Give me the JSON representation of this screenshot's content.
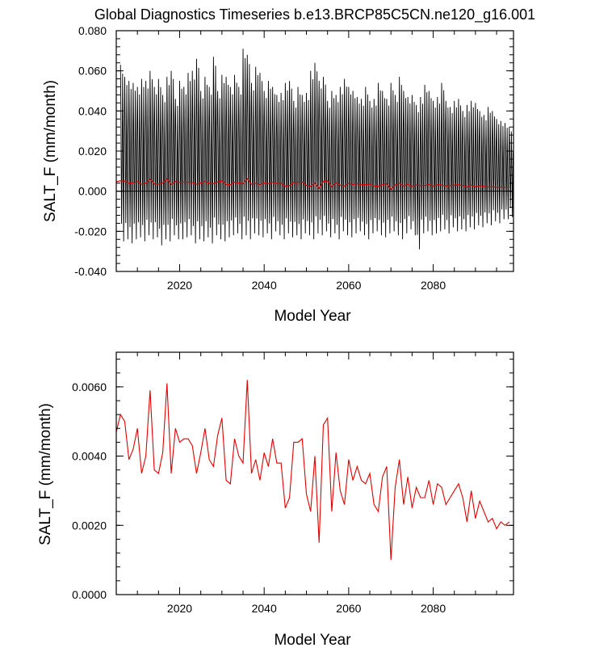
{
  "chart_data": [
    {
      "type": "line",
      "title": "Global Diagnostics Timeseries b.e13.BRCP85C5CN.ne120_g16.001",
      "xlabel": "Model Year",
      "ylabel": "SALT_F (mm/month)",
      "xlim": [
        2005,
        2099
      ],
      "ylim": [
        -0.04,
        0.08
      ],
      "x_ticks": [
        2020,
        2040,
        2060,
        2080
      ],
      "x_tick_labels": [
        "2020",
        "2040",
        "2060",
        "2080"
      ],
      "y_ticks": [
        -0.04,
        -0.02,
        0.0,
        0.02,
        0.04,
        0.06,
        0.08
      ],
      "y_tick_labels": [
        "-0.040",
        "-0.020",
        "0.000",
        "0.020",
        "0.040",
        "0.060",
        "0.080"
      ],
      "zero_line": true,
      "monthly_series": {
        "color": "#000000",
        "description_values": "monthly values oscillating seasonally",
        "start_year": 2006,
        "annual_peaks": [
          0.063,
          0.057,
          0.055,
          0.054,
          0.052,
          0.056,
          0.055,
          0.06,
          0.052,
          0.056,
          0.048,
          0.057,
          0.06,
          0.046,
          0.055,
          0.052,
          0.059,
          0.06,
          0.066,
          0.05,
          0.057,
          0.052,
          0.067,
          0.05,
          0.058,
          0.057,
          0.052,
          0.058,
          0.052,
          0.071,
          0.068,
          0.054,
          0.062,
          0.059,
          0.05,
          0.055,
          0.052,
          0.048,
          0.049,
          0.054,
          0.055,
          0.045,
          0.052,
          0.048,
          0.049,
          0.06,
          0.064,
          0.055,
          0.057,
          0.045,
          0.05,
          0.048,
          0.052,
          0.056,
          0.052,
          0.05,
          0.047,
          0.046,
          0.052,
          0.045,
          0.046,
          0.054,
          0.05,
          0.046,
          0.054,
          0.048,
          0.057,
          0.05,
          0.047,
          0.048,
          0.043,
          0.047,
          0.053,
          0.05,
          0.045,
          0.047,
          0.054,
          0.045,
          0.042,
          0.045,
          0.046,
          0.04,
          0.043,
          0.045,
          0.044,
          0.04,
          0.038,
          0.042,
          0.04,
          0.036,
          0.035,
          0.034,
          0.032
        ],
        "annual_troughs": [
          -0.025,
          -0.024,
          -0.026,
          -0.024,
          -0.023,
          -0.025,
          -0.022,
          -0.024,
          -0.023,
          -0.027,
          -0.024,
          -0.025,
          -0.022,
          -0.024,
          -0.024,
          -0.023,
          -0.022,
          -0.026,
          -0.024,
          -0.025,
          -0.023,
          -0.026,
          -0.022,
          -0.024,
          -0.025,
          -0.023,
          -0.022,
          -0.021,
          -0.024,
          -0.022,
          -0.024,
          -0.021,
          -0.022,
          -0.023,
          -0.021,
          -0.024,
          -0.02,
          -0.022,
          -0.024,
          -0.021,
          -0.023,
          -0.022,
          -0.024,
          -0.021,
          -0.022,
          -0.024,
          -0.021,
          -0.022,
          -0.02,
          -0.023,
          -0.021,
          -0.024,
          -0.02,
          -0.022,
          -0.023,
          -0.021,
          -0.02,
          -0.022,
          -0.024,
          -0.021,
          -0.02,
          -0.022,
          -0.023,
          -0.021,
          -0.02,
          -0.022,
          -0.024,
          -0.021,
          -0.019,
          -0.022,
          -0.029,
          -0.021,
          -0.02,
          -0.022,
          -0.021,
          -0.02,
          -0.019,
          -0.021,
          -0.018,
          -0.02,
          -0.019,
          -0.02,
          -0.018,
          -0.019,
          -0.017,
          -0.018,
          -0.016,
          -0.017,
          -0.015,
          -0.016,
          -0.014,
          -0.014,
          -0.013
        ]
      },
      "annual_series_color": "#e00000"
    },
    {
      "type": "line",
      "title": "",
      "xlabel": "Model Year",
      "ylabel": "SALT_F (mm/month)",
      "xlim": [
        2005,
        2099
      ],
      "ylim": [
        0.0,
        0.007
      ],
      "x_ticks": [
        2020,
        2040,
        2060,
        2080
      ],
      "x_tick_labels": [
        "2020",
        "2040",
        "2060",
        "2080"
      ],
      "y_ticks": [
        0.0,
        0.002,
        0.004,
        0.006
      ],
      "y_tick_labels": [
        "0.0000",
        "0.0020",
        "0.0040",
        "0.0060"
      ],
      "series": [
        {
          "color": "#e00000",
          "x_start": 2005,
          "x_step": 1,
          "values": [
            0.0047,
            0.0052,
            0.005,
            0.0039,
            0.0042,
            0.0048,
            0.0035,
            0.004,
            0.0059,
            0.0036,
            0.0035,
            0.0041,
            0.0061,
            0.0035,
            0.0048,
            0.0044,
            0.0045,
            0.0045,
            0.0043,
            0.0035,
            0.0041,
            0.0048,
            0.0039,
            0.0037,
            0.0046,
            0.0051,
            0.0033,
            0.0032,
            0.0045,
            0.004,
            0.0038,
            0.0062,
            0.0035,
            0.0039,
            0.0033,
            0.0041,
            0.0037,
            0.0045,
            0.0038,
            0.0038,
            0.0025,
            0.0028,
            0.0044,
            0.0044,
            0.0045,
            0.0029,
            0.0024,
            0.004,
            0.0015,
            0.0049,
            0.0051,
            0.0024,
            0.0041,
            0.003,
            0.0026,
            0.0039,
            0.0033,
            0.0037,
            0.0033,
            0.0032,
            0.0035,
            0.0026,
            0.0024,
            0.0034,
            0.0037,
            0.001,
            0.0031,
            0.0039,
            0.0026,
            0.0034,
            0.0025,
            0.0031,
            0.0028,
            0.0028,
            0.0033,
            0.0026,
            0.0032,
            0.0031,
            0.0026,
            0.0028,
            0.003,
            0.0032,
            0.0028,
            0.0021,
            0.003,
            0.0022,
            0.0027,
            0.0024,
            0.0021,
            0.0022,
            0.0019,
            0.0021,
            0.002,
            0.0021
          ]
        }
      ]
    }
  ]
}
